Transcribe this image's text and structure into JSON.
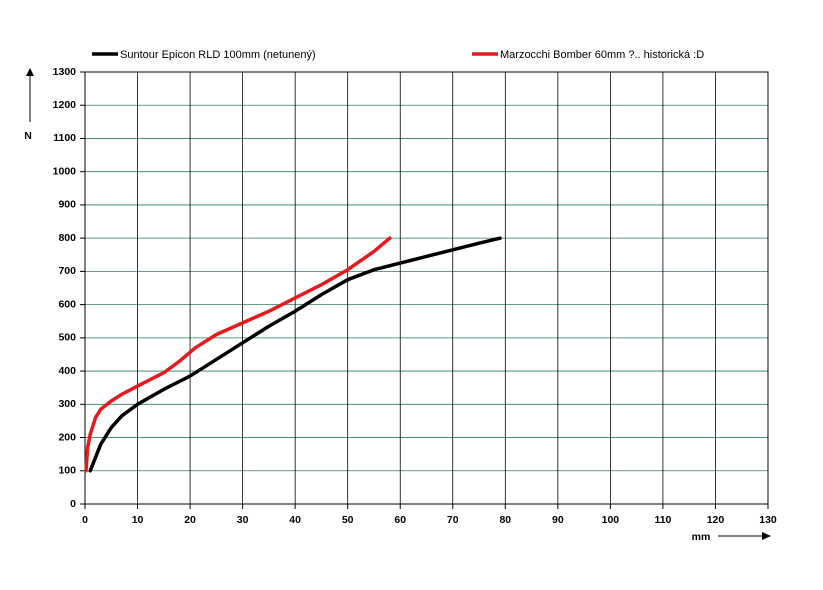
{
  "chart_data": {
    "type": "line",
    "xlabel": "mm",
    "ylabel": "N",
    "xlim": [
      0,
      130
    ],
    "ylim": [
      0,
      1300
    ],
    "xticks": [
      0,
      10,
      20,
      30,
      40,
      50,
      60,
      70,
      80,
      90,
      100,
      110,
      120,
      130
    ],
    "yticks": [
      0,
      100,
      200,
      300,
      400,
      500,
      600,
      700,
      800,
      900,
      1000,
      1100,
      1200,
      1300
    ],
    "grid": true,
    "legend": "top",
    "series": [
      {
        "name": "Suntour Epicon RLD 100mm (netunený)",
        "color": "#000000",
        "x": [
          1,
          3,
          5,
          7,
          10,
          15,
          20,
          25,
          30,
          35,
          40,
          45,
          50,
          55,
          60,
          65,
          70,
          75,
          79
        ],
        "values": [
          100,
          180,
          230,
          265,
          300,
          345,
          385,
          435,
          485,
          535,
          580,
          630,
          675,
          705,
          725,
          745,
          765,
          785,
          800
        ]
      },
      {
        "name": "Marzocchi Bomber 60mm ?.. historická :D",
        "color": "#e41a1c",
        "x": [
          0.2,
          0.5,
          1,
          2,
          3,
          5,
          7,
          10,
          15,
          18,
          21,
          25,
          30,
          35,
          40,
          45,
          50,
          55,
          58
        ],
        "values": [
          100,
          170,
          210,
          260,
          285,
          310,
          330,
          355,
          395,
          430,
          470,
          510,
          545,
          580,
          620,
          660,
          705,
          760,
          800
        ]
      }
    ]
  }
}
